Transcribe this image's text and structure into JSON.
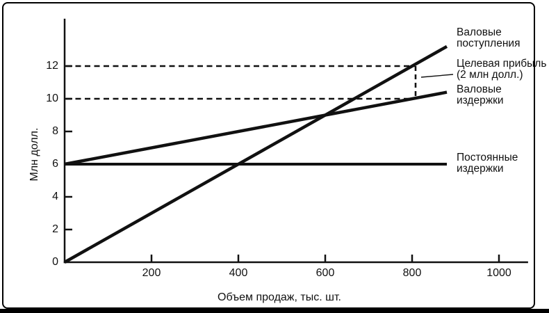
{
  "figure": {
    "ylabel": "Млн долл.",
    "xlabel": "Объем продаж, тыс. шт."
  },
  "labels": {
    "gross_receipts": "Валовые\nпоступления",
    "target_profit": "Целевая прибыль\n(2 млн долл.)",
    "gross_costs": "Валовые\nиздержки",
    "fixed_costs": "Постоянные\nиздержки"
  },
  "chart_data": {
    "type": "line",
    "title": "",
    "xlabel": "Объем продаж, тыс. шт.",
    "ylabel": "Млн долл.",
    "x_ticks": [
      200,
      400,
      600,
      800,
      1000
    ],
    "y_ticks": [
      0,
      2,
      4,
      6,
      8,
      10,
      12
    ],
    "xlim": [
      0,
      1067
    ],
    "ylim": [
      0,
      14.9
    ],
    "grid": false,
    "legend_position": "right-labels",
    "series": [
      {
        "name": "Валовые поступления",
        "points": [
          [
            0,
            0
          ],
          [
            880,
            13.2
          ]
        ]
      },
      {
        "name": "Валовые издержки",
        "points": [
          [
            0,
            6
          ],
          [
            880,
            10.4
          ]
        ]
      },
      {
        "name": "Постоянные издержки",
        "points": [
          [
            0,
            6
          ],
          [
            880,
            6
          ]
        ]
      }
    ],
    "annotations": {
      "break_even": {
        "x": 600,
        "y": 9
      },
      "target_profit_label": "Целевая прибыль (2 млн долл.)",
      "target_profit_value_mln": 2,
      "dashed_horizontal": [
        {
          "y": 12,
          "x_from": 0,
          "x_to": 808
        },
        {
          "y": 10,
          "x_from": 0,
          "x_to": 800
        }
      ],
      "dashed_vertical": {
        "x": 808,
        "y_from": 10.15,
        "y_to": 12
      }
    },
    "colors": {
      "line": "#111111",
      "background": "#ffffff"
    }
  }
}
